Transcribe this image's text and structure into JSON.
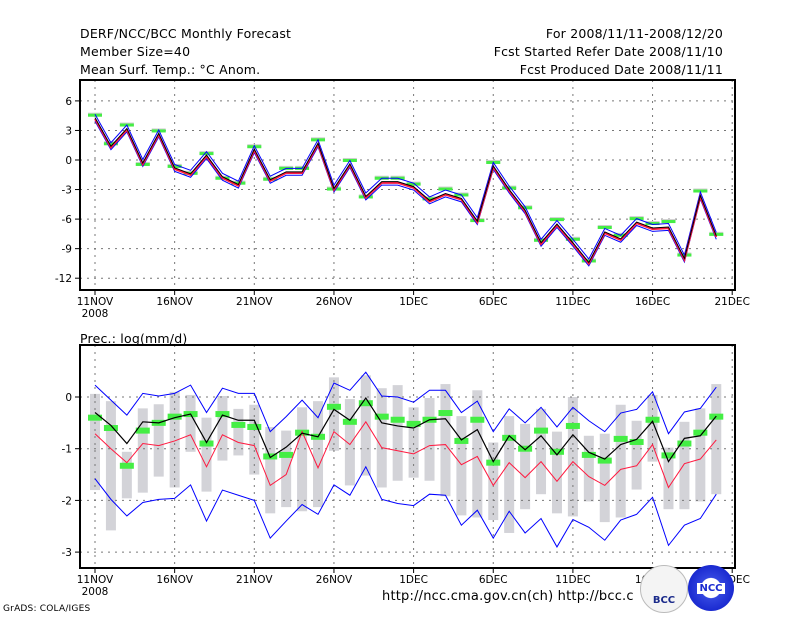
{
  "header": {
    "title": "DERF/NCC/BCC Monthly Forecast",
    "member": "Member Size=40",
    "variable": "Mean Surf. Temp.: °C Anom.",
    "period": "For 2008/11/11-2008/12/20",
    "started": "Fcst Started Refer Date 2008/11/10",
    "produced": "Fcst Produced Date 2008/11/11"
  },
  "footer": {
    "grads": "GrADS: COLA/IGES",
    "urls": "http://ncc.cma.gov.cn(ch)   http://bcc.c",
    "logo_bcc": "BCC",
    "logo_ncc": "NCC"
  },
  "colors": {
    "ensemble_bound": "#0000ff",
    "ensemble_mean": "#000000",
    "median": "#ff1a40",
    "obs": "#44ee44",
    "spread": "#d3d3d8"
  },
  "chart_data": [
    {
      "type": "line",
      "title": "Mean Surf. Temp.: °C Anom.",
      "xlabel": "",
      "ylabel": "",
      "x_tick_labels": [
        "11NOV",
        "16NOV",
        "21NOV",
        "26NOV",
        "1DEC",
        "6DEC",
        "11DEC",
        "16DEC",
        "21DEC"
      ],
      "x_year_label": "2008",
      "y_ticks": [
        6,
        3,
        0,
        -3,
        -6,
        -9,
        -12
      ],
      "ylim": [
        -14,
        8
      ],
      "grid": true,
      "days": 40,
      "series": [
        {
          "name": "ensemble mean",
          "values": [
            4.3,
            1.4,
            3.2,
            -0.3,
            2.7,
            -0.8,
            -1.4,
            0.5,
            -1.7,
            -2.5,
            1.1,
            -2.0,
            -1.2,
            -1.2,
            1.7,
            -2.9,
            -0.4,
            -3.7,
            -2.2,
            -2.2,
            -2.7,
            -4.1,
            -3.4,
            -3.9,
            -6.2,
            -0.6,
            -3.0,
            -5.1,
            -8.4,
            -6.5,
            -8.4,
            -10.4,
            -7.3,
            -8.0,
            -6.3,
            -6.9,
            -6.8,
            -10.0,
            -3.6,
            -7.7
          ]
        },
        {
          "name": "observation",
          "values": [
            4.5,
            1.6,
            3.5,
            -0.5,
            2.9,
            -0.7,
            -1.4,
            0.6,
            -1.9,
            -2.4,
            1.3,
            -2.0,
            -0.9,
            -0.9,
            2.0,
            -3.0,
            -0.1,
            -3.8,
            -1.9,
            -1.9,
            -2.5,
            -4.0,
            -3.0,
            -3.6,
            -6.2,
            -0.3,
            -2.9,
            -4.9,
            -8.2,
            -6.1,
            -8.1,
            -10.3,
            -6.9,
            -7.7,
            -6.0,
            -6.5,
            -6.3,
            -9.7,
            -3.2,
            -7.6
          ]
        }
      ]
    },
    {
      "type": "line",
      "title": "Prec.: log(mm/d)",
      "xlabel": "",
      "ylabel": "",
      "x_tick_labels": [
        "11NOV",
        "16NOV",
        "21NOV",
        "26NOV",
        "1DEC",
        "6DEC",
        "11DEC",
        "16DEC",
        "21DEC"
      ],
      "x_year_label": "2008",
      "y_ticks": [
        0,
        -1,
        -2,
        -3
      ],
      "ylim": [
        -3.3,
        0.95
      ],
      "grid": true,
      "days": 40,
      "series": [
        {
          "name": "ensemble max",
          "values": [
            0.23,
            -0.06,
            -0.35,
            0.07,
            0.02,
            0.07,
            0.23,
            -0.3,
            0.17,
            0.07,
            0.07,
            -0.67,
            -0.38,
            -0.06,
            -0.4,
            0.27,
            0.13,
            0.48,
            0.02,
            0.0,
            -0.1,
            0.13,
            0.13,
            -0.3,
            -0.08,
            -0.67,
            -0.23,
            -0.5,
            -0.2,
            -0.58,
            -0.2,
            -0.46,
            -0.67,
            -0.31,
            -0.24,
            0.1,
            -0.71,
            -0.29,
            -0.22,
            0.19
          ]
        },
        {
          "name": "ensemble mean",
          "values": [
            -0.3,
            -0.55,
            -0.9,
            -0.48,
            -0.5,
            -0.4,
            -0.33,
            -0.88,
            -0.35,
            -0.45,
            -0.45,
            -1.17,
            -0.97,
            -0.7,
            -0.77,
            -0.24,
            -0.45,
            -0.02,
            -0.5,
            -0.56,
            -0.6,
            -0.44,
            -0.42,
            -0.83,
            -0.63,
            -1.25,
            -0.75,
            -1.02,
            -0.75,
            -1.12,
            -0.73,
            -1.07,
            -1.2,
            -0.92,
            -0.82,
            -0.47,
            -1.25,
            -0.8,
            -0.75,
            -0.37
          ]
        },
        {
          "name": "ensemble median",
          "values": [
            -0.71,
            -1.0,
            -1.27,
            -0.9,
            -0.94,
            -0.85,
            -0.73,
            -1.35,
            -0.73,
            -0.88,
            -0.94,
            -1.71,
            -1.5,
            -0.67,
            -1.37,
            -0.67,
            -0.92,
            -0.48,
            -0.98,
            -1.04,
            -1.1,
            -0.94,
            -0.92,
            -1.31,
            -1.15,
            -1.71,
            -1.27,
            -1.56,
            -1.25,
            -1.63,
            -1.25,
            -1.54,
            -1.71,
            -1.4,
            -1.33,
            -0.92,
            -1.75,
            -1.29,
            -1.2,
            -0.83
          ]
        },
        {
          "name": "ensemble min",
          "values": [
            -1.58,
            -1.98,
            -2.3,
            -2.04,
            -1.98,
            -1.96,
            -1.7,
            -2.4,
            -1.8,
            -1.9,
            -2.0,
            -2.73,
            -2.4,
            -2.08,
            -2.27,
            -1.7,
            -1.9,
            -1.35,
            -1.98,
            -2.06,
            -2.1,
            -1.88,
            -1.9,
            -2.48,
            -2.19,
            -2.73,
            -2.21,
            -2.63,
            -2.35,
            -2.9,
            -2.37,
            -2.52,
            -2.77,
            -2.38,
            -2.27,
            -1.94,
            -2.87,
            -2.48,
            -2.35,
            -1.88
          ]
        },
        {
          "name": "observation",
          "values": [
            -0.4,
            -0.6,
            -1.33,
            -0.65,
            -0.5,
            -0.38,
            -0.33,
            -0.9,
            -0.33,
            -0.54,
            -0.58,
            -1.15,
            -1.12,
            -0.69,
            -0.77,
            -0.19,
            -0.48,
            -0.12,
            -0.38,
            -0.44,
            -0.52,
            -0.44,
            -0.31,
            -0.85,
            -0.44,
            -1.27,
            -0.79,
            -1.0,
            -0.65,
            -1.06,
            -0.56,
            -1.12,
            -1.23,
            -0.81,
            -0.87,
            -0.44,
            -1.13,
            -0.9,
            -0.69,
            -0.38
          ]
        }
      ],
      "spread_bars": [
        [
          0.06,
          -1.8
        ],
        [
          -0.08,
          -2.58
        ],
        [
          -1.06,
          -1.96
        ],
        [
          -0.22,
          -1.85
        ],
        [
          -0.14,
          -1.54
        ],
        [
          0.1,
          -1.75
        ],
        [
          0.04,
          -1.06
        ],
        [
          -0.4,
          -1.83
        ],
        [
          0.02,
          -1.23
        ],
        [
          -0.23,
          -1.13
        ],
        [
          -0.15,
          -1.5
        ],
        [
          -0.58,
          -2.25
        ],
        [
          -0.65,
          -2.13
        ],
        [
          -0.2,
          -2.21
        ],
        [
          -0.08,
          -2.13
        ],
        [
          0.38,
          -1.04
        ],
        [
          -0.04,
          -1.71
        ],
        [
          0.42,
          -1.52
        ],
        [
          0.17,
          -1.75
        ],
        [
          0.23,
          -1.62
        ],
        [
          -0.2,
          -1.56
        ],
        [
          -0.02,
          -1.62
        ],
        [
          0.25,
          -1.92
        ],
        [
          -0.37,
          -2.29
        ],
        [
          0.13,
          -2.33
        ],
        [
          -0.88,
          -2.38
        ],
        [
          -0.37,
          -2.63
        ],
        [
          -0.52,
          -2.17
        ],
        [
          -0.23,
          -1.88
        ],
        [
          -0.67,
          -2.25
        ],
        [
          0.0,
          -2.31
        ],
        [
          -0.75,
          -2.02
        ],
        [
          -0.71,
          -2.42
        ],
        [
          -0.15,
          -2.33
        ],
        [
          -0.46,
          -1.79
        ],
        [
          0.04,
          -1.25
        ],
        [
          -0.98,
          -2.17
        ],
        [
          -0.48,
          -2.17
        ],
        [
          -0.22,
          -2.02
        ],
        [
          0.25,
          -1.88
        ]
      ]
    }
  ]
}
